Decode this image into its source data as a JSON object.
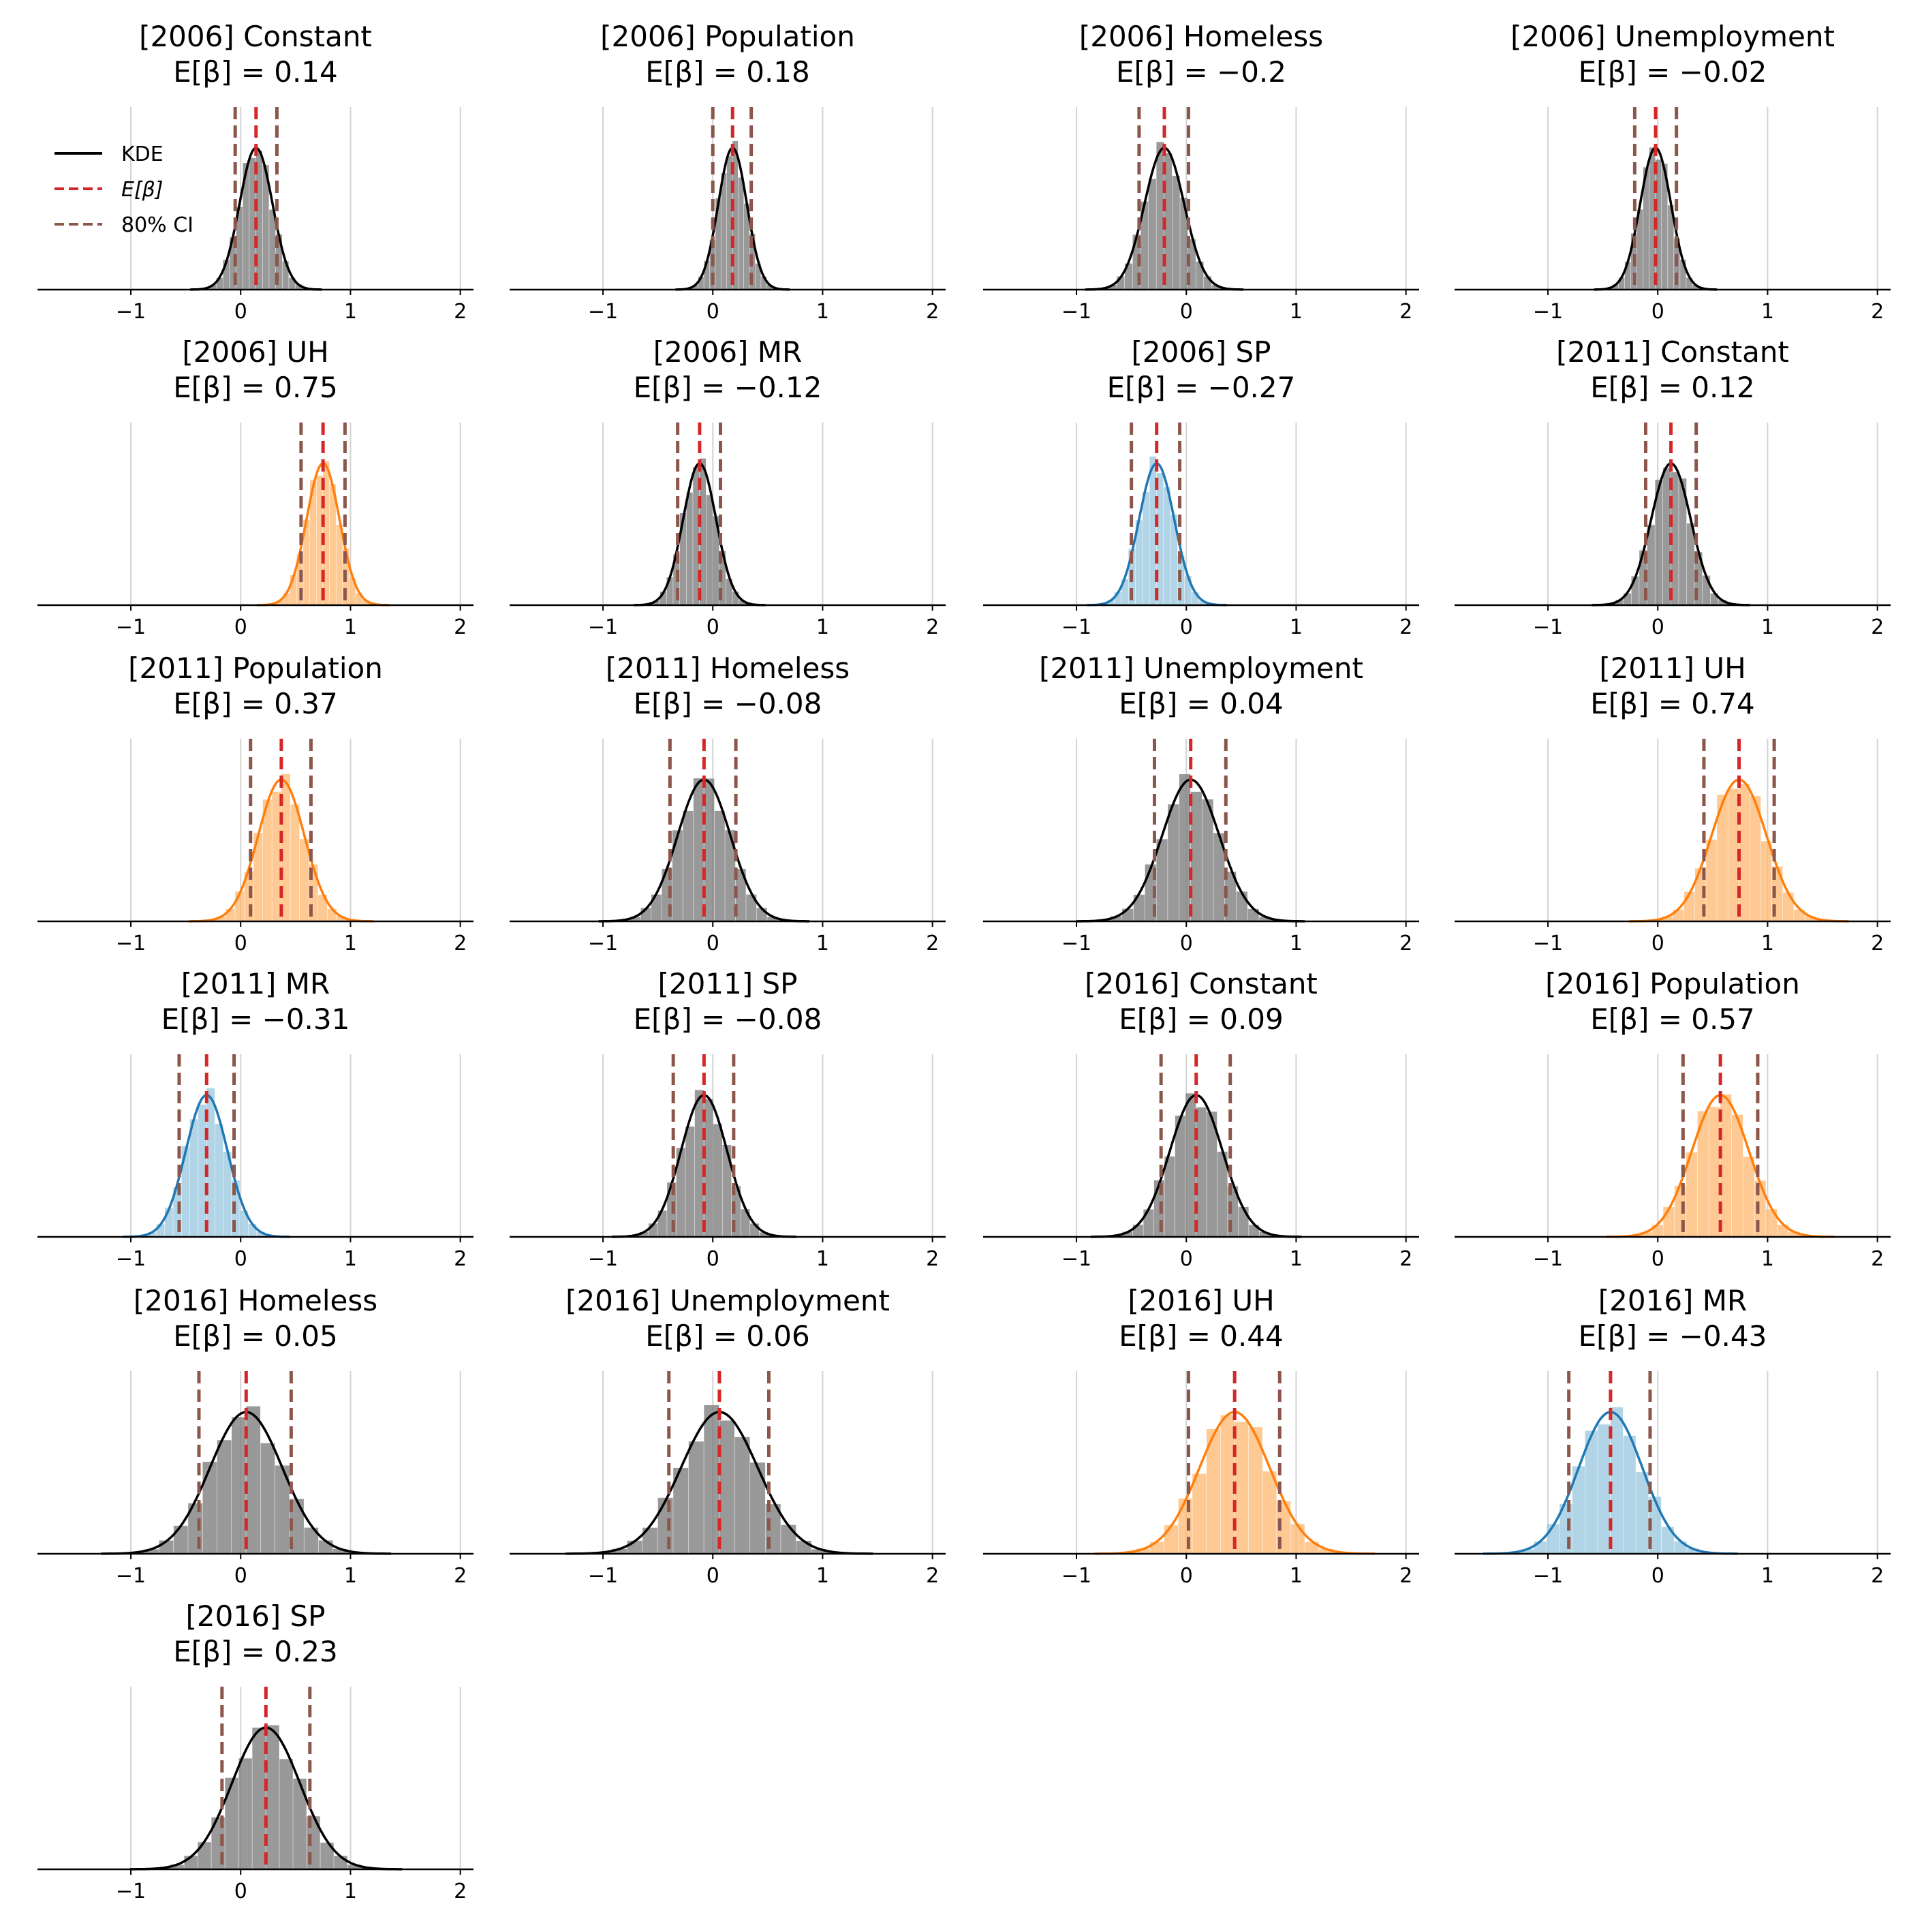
{
  "chart_data": {
    "type": "histogram-kde-grid",
    "x_ticks": [
      "−1",
      "0",
      "1",
      "2"
    ],
    "xlim": [
      -1.85,
      2.12
    ],
    "colors": {
      "neutral_hist": "#7f7f7f",
      "positive_hist": "#ffbb78",
      "negative_hist": "#9ecae1",
      "neutral_line": "#000000",
      "positive_line": "#ff7f0e",
      "negative_line": "#1f77b4",
      "mean_line": "#d62728",
      "ci_line": "#8c564b",
      "grid": "#d3d3d3"
    },
    "legend": {
      "location": "upper left of first panel",
      "entries": [
        {
          "label": "KDE",
          "style": "solid black"
        },
        {
          "label": "E[β]",
          "style": "dashed red"
        },
        {
          "label": "80% CI",
          "style": "dashed brown"
        }
      ]
    },
    "panels": [
      {
        "title": "[2006] Constant",
        "mean_label": "E[β] = 0.14",
        "mean": 0.14,
        "ci": [
          -0.05,
          0.33
        ],
        "sd": 0.15,
        "sign": "neutral"
      },
      {
        "title": "[2006] Population",
        "mean_label": "E[β] = 0.18",
        "mean": 0.18,
        "ci": [
          0.0,
          0.35
        ],
        "sd": 0.13,
        "sign": "neutral"
      },
      {
        "title": "[2006] Homeless",
        "mean_label": "E[β] = −0.2",
        "mean": -0.2,
        "ci": [
          -0.43,
          0.02
        ],
        "sd": 0.18,
        "sign": "neutral"
      },
      {
        "title": "[2006] Unemployment",
        "mean_label": "E[β] = −0.02",
        "mean": -0.02,
        "ci": [
          -0.21,
          0.17
        ],
        "sd": 0.14,
        "sign": "neutral"
      },
      {
        "title": "[2006] UH",
        "mean_label": "E[β] = 0.75",
        "mean": 0.75,
        "ci": [
          0.55,
          0.95
        ],
        "sd": 0.15,
        "sign": "positive"
      },
      {
        "title": "[2006] MR",
        "mean_label": "E[β] = −0.12",
        "mean": -0.12,
        "ci": [
          -0.32,
          0.07
        ],
        "sd": 0.15,
        "sign": "neutral"
      },
      {
        "title": "[2006] SP",
        "mean_label": "E[β] = −0.27",
        "mean": -0.27,
        "ci": [
          -0.5,
          -0.06
        ],
        "sd": 0.16,
        "sign": "negative"
      },
      {
        "title": "[2011] Constant",
        "mean_label": "E[β] = 0.12",
        "mean": 0.12,
        "ci": [
          -0.11,
          0.35
        ],
        "sd": 0.18,
        "sign": "neutral"
      },
      {
        "title": "[2011] Population",
        "mean_label": "E[β] = 0.37",
        "mean": 0.37,
        "ci": [
          0.09,
          0.64
        ],
        "sd": 0.21,
        "sign": "positive"
      },
      {
        "title": "[2011] Homeless",
        "mean_label": "E[β] = −0.08",
        "mean": -0.08,
        "ci": [
          -0.39,
          0.21
        ],
        "sd": 0.24,
        "sign": "neutral"
      },
      {
        "title": "[2011] Unemployment",
        "mean_label": "E[β] = 0.04",
        "mean": 0.04,
        "ci": [
          -0.29,
          0.36
        ],
        "sd": 0.26,
        "sign": "neutral"
      },
      {
        "title": "[2011] UH",
        "mean_label": "E[β] = 0.74",
        "mean": 0.74,
        "ci": [
          0.42,
          1.06
        ],
        "sd": 0.25,
        "sign": "positive"
      },
      {
        "title": "[2011] MR",
        "mean_label": "E[β] = −0.31",
        "mean": -0.31,
        "ci": [
          -0.56,
          -0.06
        ],
        "sd": 0.19,
        "sign": "negative"
      },
      {
        "title": "[2011] SP",
        "mean_label": "E[β] = −0.08",
        "mean": -0.08,
        "ci": [
          -0.36,
          0.19
        ],
        "sd": 0.21,
        "sign": "neutral"
      },
      {
        "title": "[2016] Constant",
        "mean_label": "E[β] = 0.09",
        "mean": 0.09,
        "ci": [
          -0.23,
          0.4
        ],
        "sd": 0.24,
        "sign": "neutral"
      },
      {
        "title": "[2016] Population",
        "mean_label": "E[β] = 0.57",
        "mean": 0.57,
        "ci": [
          0.23,
          0.91
        ],
        "sd": 0.26,
        "sign": "positive"
      },
      {
        "title": "[2016] Homeless",
        "mean_label": "E[β] = 0.05",
        "mean": 0.05,
        "ci": [
          -0.38,
          0.46
        ],
        "sd": 0.33,
        "sign": "neutral"
      },
      {
        "title": "[2016] Unemployment",
        "mean_label": "E[β] = 0.06",
        "mean": 0.06,
        "ci": [
          -0.4,
          0.51
        ],
        "sd": 0.35,
        "sign": "neutral"
      },
      {
        "title": "[2016] UH",
        "mean_label": "E[β] = 0.44",
        "mean": 0.44,
        "ci": [
          0.02,
          0.85
        ],
        "sd": 0.32,
        "sign": "positive"
      },
      {
        "title": "[2016] MR",
        "mean_label": "E[β] = −0.43",
        "mean": -0.43,
        "ci": [
          -0.81,
          -0.07
        ],
        "sd": 0.29,
        "sign": "negative"
      },
      {
        "title": "[2016] SP",
        "mean_label": "E[β] = 0.23",
        "mean": 0.23,
        "ci": [
          -0.17,
          0.63
        ],
        "sd": 0.31,
        "sign": "neutral"
      }
    ]
  }
}
